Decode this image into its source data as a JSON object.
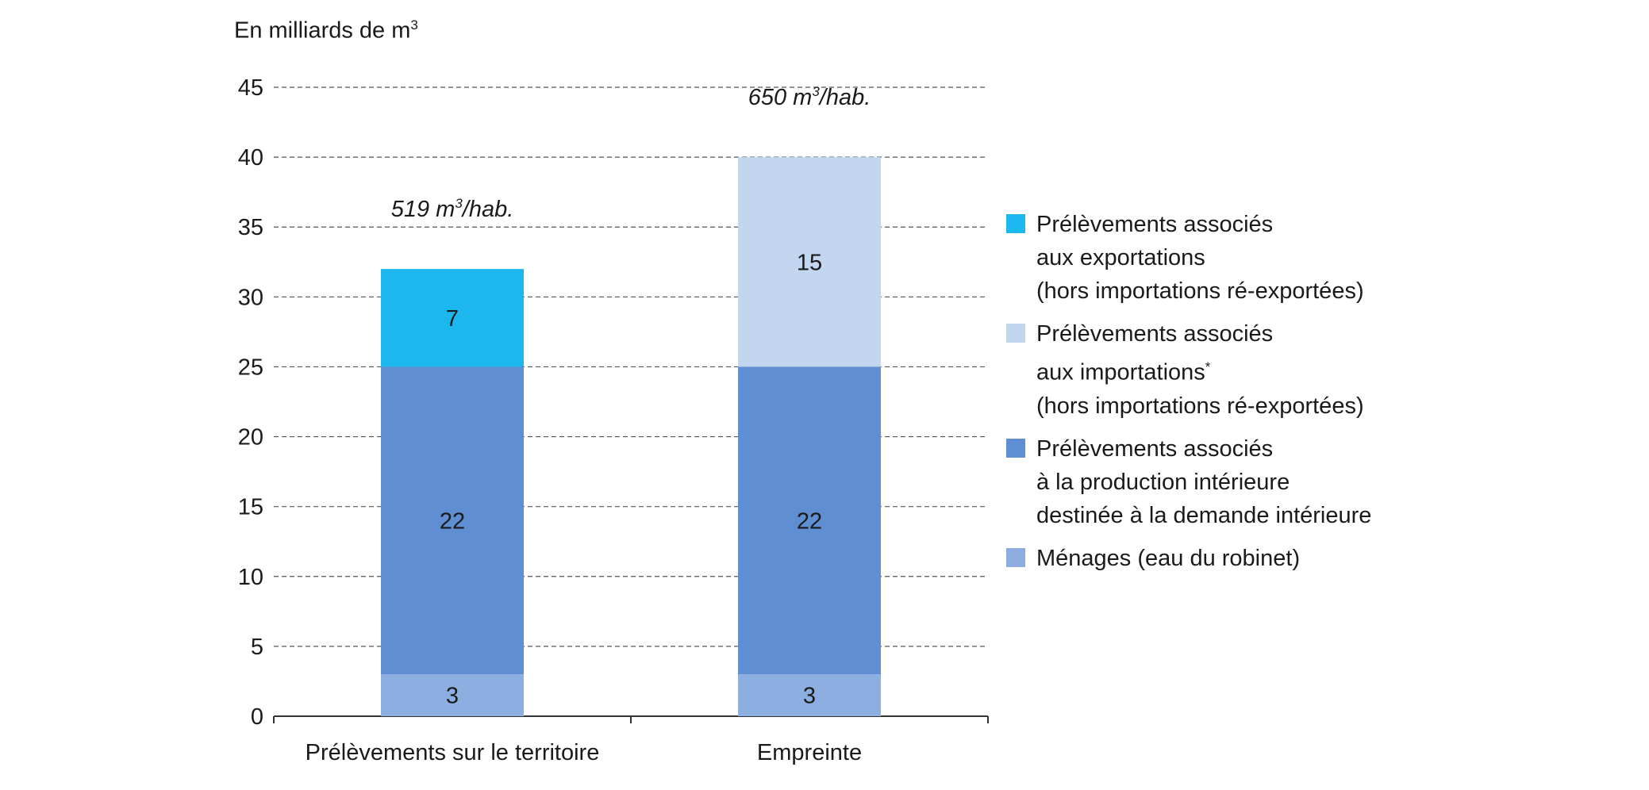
{
  "chart_data": {
    "type": "bar",
    "stacked": true,
    "ylabel_text": "En milliards de m",
    "ylabel_sup": "3",
    "ylim": [
      0,
      45
    ],
    "yticks": [
      0,
      5,
      10,
      15,
      20,
      25,
      30,
      35,
      40,
      45
    ],
    "grid": true,
    "legend_position": "right",
    "categories": [
      "Prélèvements sur le territoire",
      "Empreinte"
    ],
    "series": [
      {
        "key": "menages",
        "name": "Ménages (eau du robinet)",
        "color": "#8daee0",
        "values": [
          3,
          3
        ],
        "labels": [
          "3",
          "3"
        ]
      },
      {
        "key": "production",
        "name": "Prélèvements associés à la production intérieure destinée à la demande intérieure",
        "color": "#5f8fd2",
        "values": [
          22,
          22
        ],
        "labels": [
          "22",
          "22"
        ]
      },
      {
        "key": "exportations",
        "name": "Prélèvements associés aux exportations (hors importations ré-exportées)",
        "color": "#1cb7ee",
        "values": [
          7,
          0
        ],
        "labels": [
          "7",
          ""
        ]
      },
      {
        "key": "importations",
        "name": "Prélèvements associés aux importations* (hors importations ré-exportées)",
        "color": "#c2d6f0",
        "values": [
          0,
          15
        ],
        "labels": [
          "",
          "15"
        ]
      }
    ],
    "totals": [
      32,
      40
    ],
    "annotations": [
      {
        "category": "Prélèvements sur le territoire",
        "value": "519 m",
        "sup": "3",
        "unit": "/hab."
      },
      {
        "category": "Empreinte",
        "value": "650 m",
        "sup": "3",
        "unit": "/hab."
      }
    ]
  },
  "legend": [
    {
      "series": "exportations",
      "lines": [
        "Prélèvements associés",
        "aux exportations",
        "(hors importations ré-exportées)"
      ]
    },
    {
      "series": "importations",
      "lines": [
        "Prélèvements associés",
        "aux importations",
        "(hors importations ré-exportées)"
      ],
      "line2_mark": "*"
    },
    {
      "series": "production",
      "lines": [
        "Prélèvements associés",
        "à la production intérieure",
        "destinée à la demande intérieure"
      ]
    },
    {
      "series": "menages",
      "lines": [
        "Ménages (eau du robinet)"
      ]
    }
  ]
}
